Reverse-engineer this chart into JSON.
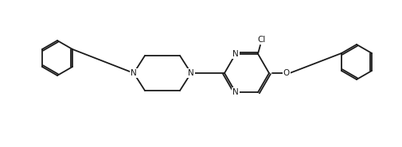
{
  "bg_color": "#ffffff",
  "line_color": "#1a1a1a",
  "line_width": 1.3,
  "font_size": 7.5,
  "figsize": [
    5.06,
    1.85
  ],
  "dpi": 100,
  "xlim": [
    0,
    506
  ],
  "ylim": [
    0,
    185
  ]
}
